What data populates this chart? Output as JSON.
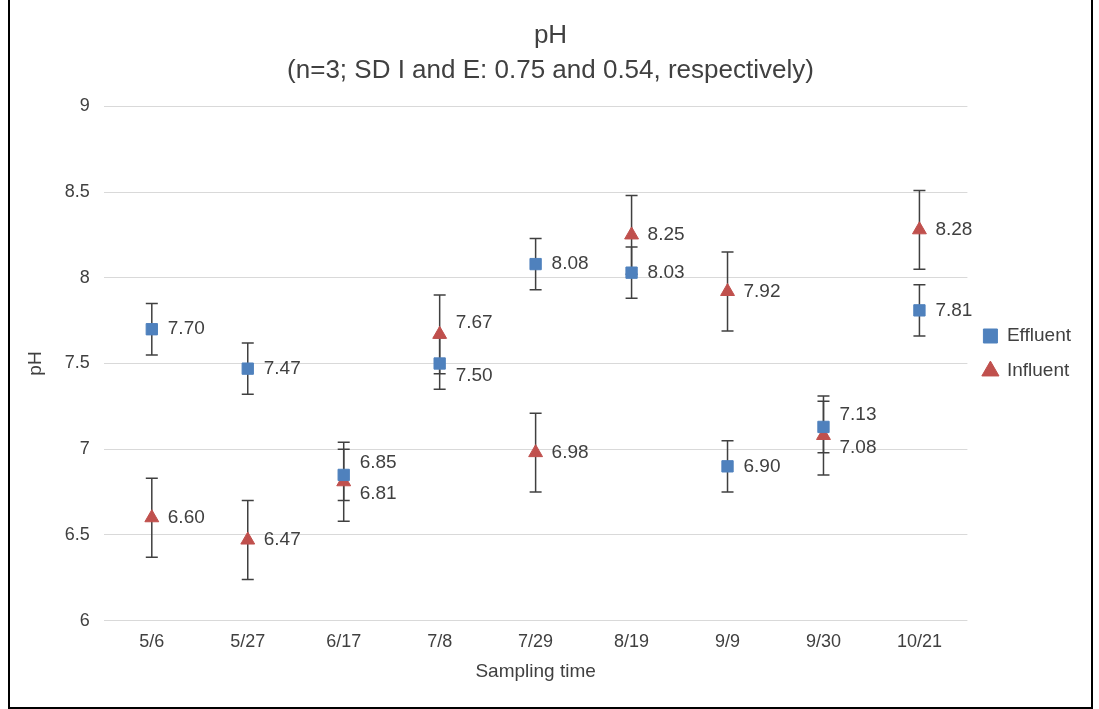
{
  "chart_data": {
    "type": "scatter",
    "title": "pH",
    "subtitle": "(n=3; SD I and E: 0.75 and 0.54, respectively)",
    "xlabel": "Sampling time",
    "ylabel": "pH",
    "categories": [
      "5/6",
      "5/27",
      "6/17",
      "7/8",
      "7/29",
      "8/19",
      "9/9",
      "9/30",
      "10/21"
    ],
    "series": [
      {
        "name": "Effluent",
        "color": "#4f81bd",
        "marker": "square",
        "values": [
          7.7,
          7.47,
          6.85,
          7.5,
          8.08,
          8.03,
          6.9,
          7.13,
          7.81
        ],
        "errors": [
          0.15,
          0.15,
          0.15,
          0.15,
          0.15,
          0.15,
          0.15,
          0.15,
          0.15
        ],
        "value_labels": [
          "7.70",
          "7.47",
          "6.85",
          "7.50",
          "8.08",
          "8.03",
          "6.90",
          "7.13",
          "7.81"
        ]
      },
      {
        "name": "Influent",
        "color": "#c0504d",
        "marker": "triangle",
        "values": [
          6.6,
          6.47,
          6.81,
          7.67,
          6.98,
          8.25,
          7.92,
          7.08,
          8.28
        ],
        "errors": [
          0.23,
          0.23,
          0.23,
          0.23,
          0.23,
          0.23,
          0.23,
          0.23,
          0.23
        ],
        "value_labels": [
          "6.60",
          "6.47",
          "6.81",
          "7.67",
          "6.98",
          "8.25",
          "7.92",
          "7.08",
          "8.28"
        ]
      }
    ],
    "ylim": [
      6,
      9
    ],
    "yticks": [
      6,
      6.5,
      7,
      7.5,
      8,
      8.5,
      9
    ],
    "grid": "y",
    "legend": "right"
  }
}
